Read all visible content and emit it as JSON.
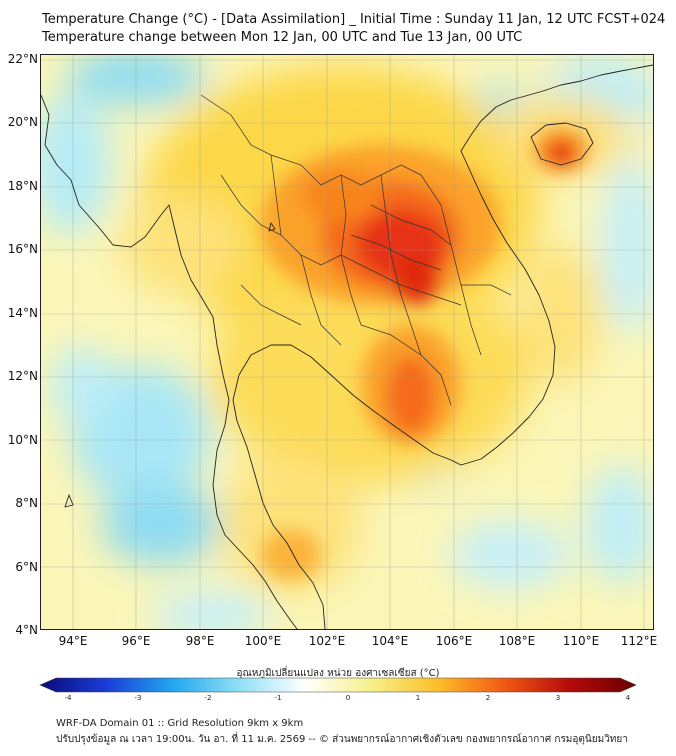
{
  "title": {
    "line1": "Temperature Change (°C) - [Data Assimilation] _ Initial Time : Sunday 11 Jan, 12 UTC FCST+024",
    "line2": "Temperature change between Mon 12 Jan, 00 UTC and Tue 13 Jan, 00 UTC"
  },
  "map": {
    "lat_labels": [
      "22°N",
      "20°N",
      "18°N",
      "16°N",
      "14°N",
      "12°N",
      "10°N",
      "8°N",
      "6°N",
      "4°N"
    ],
    "lon_labels": [
      "94°E",
      "96°E",
      "98°E",
      "100°E",
      "102°E",
      "104°E",
      "106°E",
      "108°E",
      "110°E",
      "112°E"
    ],
    "background_color": "#fbf6b8",
    "land_color": "#fbe98c"
  },
  "colorbar": {
    "title": "อุณหภูมิเปลี่ยนแปลง หน่วย องศาเซลเซียส (°C)",
    "ticks": [
      "-4",
      "-3",
      "-2",
      "-1",
      "0",
      "1",
      "2",
      "3",
      "4"
    ],
    "min": -4,
    "max": 4,
    "colors": [
      "#0a0a7a",
      "#1a3cd6",
      "#22a6f0",
      "#8fe0f5",
      "#ffffff",
      "#f7f08a",
      "#fbbf2a",
      "#f25a14",
      "#b30a0a",
      "#6b0000"
    ]
  },
  "footer": {
    "line1": "WRF-DA Domain 01 :: Grid Resolution 9km x 9km",
    "line2": "ปรับปรุงข้อมูล ณ เวลา 19:00น. วัน อา. ที่ 11 ม.ค. 2569 -- © ส่วนพยากรณ์อากาศเชิงตัวเลข กองพยากรณ์อากาศ กรมอุตุนิยมวิทยา"
  }
}
